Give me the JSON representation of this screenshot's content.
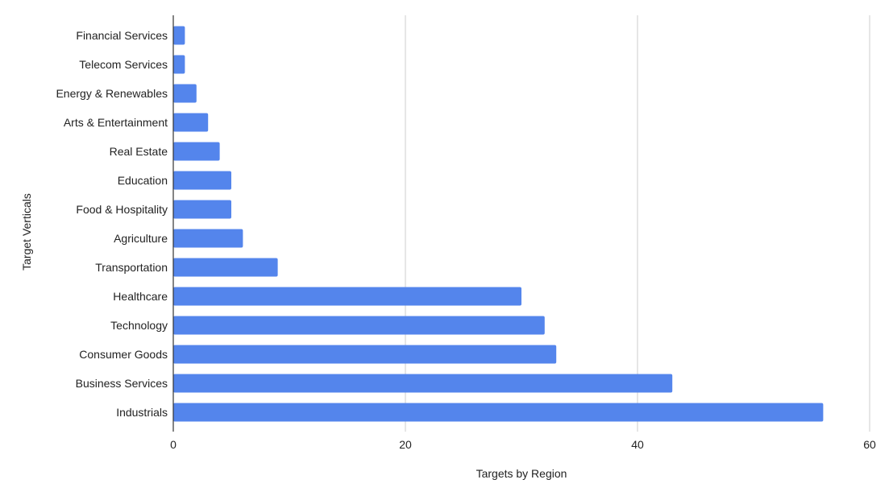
{
  "chart_data": {
    "type": "bar",
    "orientation": "horizontal",
    "categories": [
      "Financial Services",
      "Telecom Services",
      "Energy & Renewables",
      "Arts & Entertainment",
      "Real Estate",
      "Education",
      "Food & Hospitality",
      "Agriculture",
      "Transportation",
      "Healthcare",
      "Technology",
      "Consumer Goods",
      "Business Services",
      "Industrials"
    ],
    "values": [
      1,
      1,
      2,
      3,
      4,
      5,
      5,
      6,
      9,
      30,
      32,
      33,
      43,
      56
    ],
    "xlabel": "Targets by Region",
    "ylabel": "Target Verticals",
    "xlim": [
      0,
      60
    ],
    "xticks": [
      "0",
      "20",
      "40",
      "60"
    ],
    "grid": "vertical",
    "bar_color": "#5485ec",
    "gridline_color": "#cccccc",
    "axis_color": "#333333"
  }
}
